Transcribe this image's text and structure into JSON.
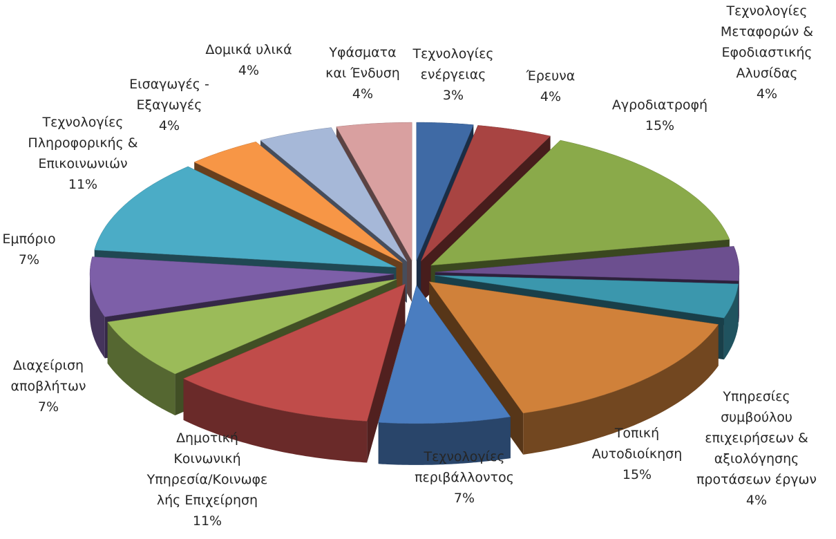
{
  "chart_data": {
    "type": "pie3d",
    "categories": [
      "Τεχνολογίες\nενέργειας",
      "Έρευνα",
      "Αγροδιατροφή",
      "Τεχνολογίες\nΜεταφορών &\nΕφοδιαστικής\nΑλυσίδας",
      "Υπηρεσίες\nσυμβούλου\nεπιχειρήσεων &\nαξιολόγησης\nπροτάσεων έργων",
      "Τοπική\nΑυτοδιοίκηση",
      "Τεχνολογίες\nπεριβάλλοντος",
      "Δημοτική\nΚοινωνική\nΥπηρεσία/Κοινωφε\nλής Επιχείρηση",
      "Διαχείριση\nαποβλήτων",
      "Εμπόριο",
      "Τεχνολογίες\nΠληροφορικής &\nΕπικοινωνιών",
      "Εισαγωγές -\nΕξαγωγές",
      "Δομικά υλικά",
      "Υφάσματα\nκαι Ένδυση"
    ],
    "values": [
      3,
      4,
      15,
      4,
      4,
      15,
      7,
      11,
      7,
      7,
      11,
      4,
      4,
      4
    ],
    "value_labels": [
      "3%",
      "4%",
      "15%",
      "4%",
      "4%",
      "15%",
      "7%",
      "11%",
      "7%",
      "7%",
      "11%",
      "4%",
      "4%",
      "4%"
    ],
    "colors": [
      "#3f6aa5",
      "#a84442",
      "#8aaa4a",
      "#6c4f8f",
      "#3b97ad",
      "#d0813a",
      "#4a7dc0",
      "#c04c4a",
      "#9bbb59",
      "#7d5fa8",
      "#4bacc6",
      "#f79646",
      "#a6b8d8",
      "#d9a0a0"
    ]
  }
}
